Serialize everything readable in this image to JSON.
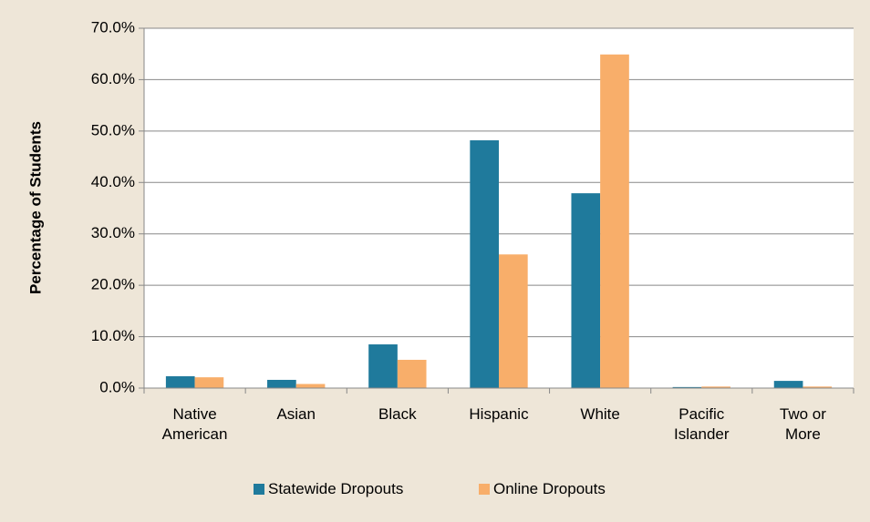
{
  "chart_data": {
    "type": "bar",
    "y_axis_label": "Percentage of Students",
    "categories": [
      "Native American",
      "Asian",
      "Black",
      "Hispanic",
      "White",
      "Pacific Islander",
      "Two or More"
    ],
    "series": [
      {
        "name": "Statewide Dropouts",
        "color": "#1f7a9c",
        "values": [
          2.3,
          1.6,
          8.5,
          48.2,
          37.9,
          0.2,
          1.4
        ]
      },
      {
        "name": "Online Dropouts",
        "color": "#f8ae6a",
        "values": [
          2.1,
          0.8,
          5.5,
          26.0,
          64.9,
          0.3,
          0.3
        ]
      }
    ],
    "ylim": [
      0,
      70
    ],
    "yticks": [
      {
        "value": 0,
        "label": "0.0%"
      },
      {
        "value": 10,
        "label": "10.0%"
      },
      {
        "value": 20,
        "label": "20.0%"
      },
      {
        "value": 30,
        "label": "30.0%"
      },
      {
        "value": 40,
        "label": "40.0%"
      },
      {
        "value": 50,
        "label": "50.0%"
      },
      {
        "value": 60,
        "label": "60.0%"
      },
      {
        "value": 70,
        "label": "70.0%"
      }
    ],
    "grid": true
  }
}
